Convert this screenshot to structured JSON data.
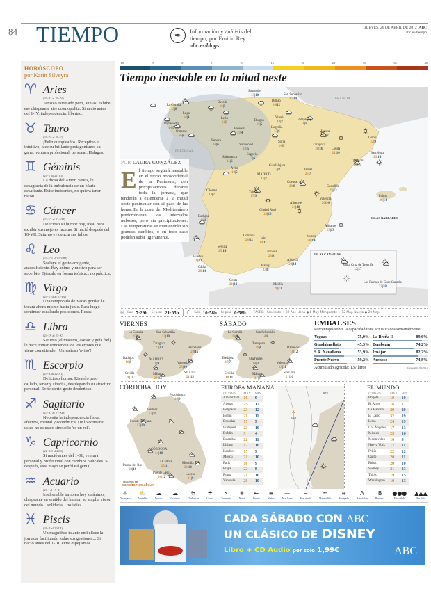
{
  "header": {
    "page_number": "84",
    "section": "TIEMPO",
    "blog_line1": "Información y análisis del",
    "blog_line2": "tiempo, por Emilio Rey",
    "blog_url": "abc.es/blogs",
    "date": "JUEVES, 26 DE ABRIL DE 2012",
    "brand": "ABC",
    "site": "abc.es/tiempo"
  },
  "horoscope": {
    "title": "HORÓSCOPO",
    "author": "por Karin Silveyra",
    "signs": [
      {
        "glyph": "♈",
        "name": "Aries",
        "dates": "(21-III al 20-IV)",
        "text": "Tenso o estresado pero, aun así exhibe ese chispeante aire cosmopolita. Si nació antes del 1-IV, independencia, libertad."
      },
      {
        "glyph": "♉",
        "name": "Tauro",
        "dates": "(21-IV al 20-V)",
        "text": "¡Feliz cumpleaños! Receptivo e intuitivo, luce su brillante protagonismo, su garra, ventura profesional, personal. Halagos."
      },
      {
        "glyph": "♊",
        "name": "Géminis",
        "dates": "(21-V al 21-VI)",
        "text": "La diosa del Amor, Venus, le desagravia de la turbulencia de un Marte desafiante. Evite incidentes, no quiera tener razón."
      },
      {
        "glyph": "♋",
        "name": "Cáncer",
        "dates": "(22-VI al 22-VII)",
        "text": "Delicioso su humor hoy, ideal para exhibir sus mejores facetas. Si nació después del 10-VII, Saturno evidencia sus fallos."
      },
      {
        "glyph": "♌",
        "name": "Leo",
        "dates": "(23-VII al 22-VIII)",
        "text": "Soslaye el gesto arrogante, autosuficiente. Hay ánimo y motivo para ser soberbio. Ejérzalo en forma teórica... no práctica."
      },
      {
        "glyph": "♍",
        "name": "Virgo",
        "dates": "(24-VIII al 23-IX)",
        "text": "Una temporada de 'vacas gordas' le tocará ahora mismo hasta junio. Para luego continuar escalando posiciones. Rosas."
      },
      {
        "glyph": "♎",
        "name": "Libra",
        "dates": "(24-IX al 23-X)",
        "text": "Saturno (el maestro, asesor y guía fiel) le hace 'tomar conciencia' de los errores que viene cometiendo. ¡Un valioso 'aviso'!"
      },
      {
        "glyph": "♏",
        "name": "Escorpio",
        "dates": "(24-X al 22-XI)",
        "text": "Delicioso humor. Risueño pero callado, tenaz y sibarita, desplegando su atractivo personal. Evite cierto gesto desdeñoso."
      },
      {
        "glyph": "♐",
        "name": "Sagitario",
        "dates": "(23-XI al 21-XII)",
        "text": "Necesita la independencia física, afectiva, mental y económica. De lo contrario... usted no es usted sino sólo 'es un rol'."
      },
      {
        "glyph": "♑",
        "name": "Capricornio",
        "dates": "(22-XII al 20-I)",
        "text": "Si nació antes del 1-01, ventura personal y profesional con cambios radicales. Si después, este mayo se perfilará genial."
      },
      {
        "glyph": "♒",
        "name": "Acuario",
        "dates": "(21-I al 19-II)",
        "text": "Irrefrenable también hoy su ánimo, chispeante su sentido del humor, su amplia visión del mundo... solidaria... holística."
      },
      {
        "glyph": "♓",
        "name": "Piscis",
        "dates": "(20-II al 20-III)",
        "text": "Un magnífico talante embellece la jornada, facilitando todas sus gestiones... Si nació antes del 1-III, evite espejismos."
      }
    ]
  },
  "scale": {
    "ticks": [
      "-10",
      "-5",
      "0",
      "5",
      "10",
      "15",
      "20",
      "25",
      "30",
      "35",
      "40"
    ],
    "colors": [
      "#1c4e6e",
      "#2a6a90",
      "#5b8db5",
      "#8fb3cf",
      "#c9dceb",
      "#f5d020",
      "#f2b61a",
      "#eb8f1e",
      "#c8521c",
      "#a5381a"
    ]
  },
  "main": {
    "headline": "Tiempo inestable en la mitad oeste",
    "byline_pre": "POR",
    "byline": "LAURA GONZÁLEZ",
    "dropcap": "E",
    "article": "l tiempo seguirá inestable en el tercio noroccidental de la Península, con precipitaciones durante toda la jornada, que tenderán a extenderse a la mitad oeste peninsular con el paso de las horas. En la costa del Mediterráneo predominarán los intervalos nubosos, pero sin precipitaciones. Las temperaturas se mantendrán sin grandes cambios, o en todo caso podrían subir ligeramente.",
    "labels": {
      "france": "FRANCIA",
      "portugal": "PORTUGAL",
      "baleares": "ISLAS BALEARES",
      "canarias": "ISLAS CANARIAS"
    },
    "cities": [
      {
        "name": "Santander",
        "max": "13",
        "min": "10"
      },
      {
        "name": "San Sebastián",
        "max": "15",
        "min": "10"
      },
      {
        "name": "Oviedo",
        "max": "10",
        "min": "5"
      },
      {
        "name": "La Coruña",
        "max": "15",
        "min": "8"
      },
      {
        "name": "Bilbao",
        "max": "14",
        "min": "12"
      },
      {
        "name": "Lugo",
        "max": "10",
        "min": "4"
      },
      {
        "name": "León",
        "max": "11",
        "min": "3"
      },
      {
        "name": "Vitoria",
        "max": "13",
        "min": "7"
      },
      {
        "name": "Pamplona",
        "max": "16",
        "min": "8"
      },
      {
        "name": "Pontevedra",
        "max": "14",
        "min": "7"
      },
      {
        "name": "Ourense",
        "max": "16",
        "min": "4"
      },
      {
        "name": "Burgos",
        "max": "10",
        "min": "5"
      },
      {
        "name": "Logroño",
        "max": "13",
        "min": "6"
      },
      {
        "name": "Palencia",
        "max": "10",
        "min": "4"
      },
      {
        "name": "Zamora",
        "max": "14",
        "min": "6"
      },
      {
        "name": "Valladolid",
        "max": "13",
        "min": "5"
      },
      {
        "name": "Soria",
        "max": "14",
        "min": "5"
      },
      {
        "name": "Huesca",
        "max": "22",
        "min": "12"
      },
      {
        "name": "Zaragoza",
        "max": "20",
        "min": "10"
      },
      {
        "name": "Lleida",
        "max": "21",
        "min": "10"
      },
      {
        "name": "Girona",
        "max": "22",
        "min": "9"
      },
      {
        "name": "Barcelona",
        "max": "23",
        "min": "14"
      },
      {
        "name": "Tarragona",
        "max": "20",
        "min": "13"
      },
      {
        "name": "Salamanca",
        "max": "11",
        "min": "6"
      },
      {
        "name": "Segovia",
        "max": "13",
        "min": "6"
      },
      {
        "name": "Guadalajara",
        "max": "13",
        "min": "8"
      },
      {
        "name": "Ávila",
        "max": "10",
        "min": "5"
      },
      {
        "name": "Teruel",
        "max": "25",
        "min": "7"
      },
      {
        "name": "MADRID",
        "max": "15",
        "min": "7"
      },
      {
        "name": "Cuenca",
        "max": "20",
        "min": "8"
      },
      {
        "name": "Castellón",
        "max": "25",
        "min": "13"
      },
      {
        "name": "Valencia",
        "max": "26",
        "min": "14"
      },
      {
        "name": "Palma",
        "max": "20",
        "min": "14"
      },
      {
        "name": "Cáceres",
        "max": "13",
        "min": "7"
      },
      {
        "name": "Toledo",
        "max": "17",
        "min": "9"
      },
      {
        "name": "Albacete",
        "max": "24",
        "min": "10"
      },
      {
        "name": "Badajoz",
        "max": "16",
        "min": "8"
      },
      {
        "name": "Ciudad Real",
        "max": "20",
        "min": "10"
      },
      {
        "name": "Alicante",
        "max": "23",
        "min": "13"
      },
      {
        "name": "Murcia",
        "max": "20",
        "min": "14"
      },
      {
        "name": "Córdoba",
        "max": "24",
        "min": "12"
      },
      {
        "name": "Jaén",
        "max": "20",
        "min": "11"
      },
      {
        "name": "Sevilla",
        "max": "25",
        "min": "14"
      },
      {
        "name": "Granada",
        "max": "23",
        "min": "8"
      },
      {
        "name": "Almería",
        "max": "20",
        "min": "14"
      },
      {
        "name": "Huelva",
        "max": "18",
        "min": "12"
      },
      {
        "name": "Cádiz",
        "max": "20",
        "min": "14"
      },
      {
        "name": "Málaga",
        "max": "23",
        "min": "8"
      },
      {
        "name": "Ceuta",
        "max": "21",
        "min": "14"
      },
      {
        "name": "Melilla",
        "max": "20",
        "min": "13"
      },
      {
        "name": "Santa Cruz de Tenerife",
        "max": "22",
        "min": "17"
      },
      {
        "name": "Las Palmas de Gran Canaria",
        "max": "22",
        "min": "18"
      }
    ]
  },
  "sun": {
    "sun_rise_label": "Sale",
    "sun_rise": "7:29h.",
    "sun_set_label": "Se pone",
    "sun_set": "21:05h.",
    "moon_rise_label": "Sale",
    "moon_rise": "10:58h.",
    "moon_set_label": "Se pone",
    "moon_set": "0:58h.",
    "phases_label": "FASES:",
    "phases": "Creciente ☽ 29 Abr.  Llena ● 6 May.   Menguante ☾ 12 May.  Nueva ● 20 May."
  },
  "viernes": {
    "title": "VIERNES",
    "cities": [
      {
        "name": "La Coruña",
        "max": "15",
        "min": "8"
      },
      {
        "name": "San Sebastián",
        "max": "13",
        "min": "10"
      },
      {
        "name": "Zaragoza",
        "max": "23",
        "min": "13"
      },
      {
        "name": "Barcelona",
        "max": "20",
        "min": "15"
      },
      {
        "name": "Badajoz",
        "max": "16",
        "min": "9"
      },
      {
        "name": "MADRID",
        "max": "18",
        "min": "9"
      },
      {
        "name": "Valencia",
        "max": "23",
        "min": "14"
      },
      {
        "name": "Sevilla",
        "max": "20",
        "min": "11"
      },
      {
        "name": "Málaga",
        "max": "23",
        "min": "13"
      },
      {
        "name": "Sta Cruz",
        "max": "21",
        "min": "15"
      }
    ]
  },
  "sabado": {
    "title": "SÁBADO",
    "cities": [
      {
        "name": "La Coruña",
        "max": "14",
        "min": "8"
      },
      {
        "name": "San Sebastián",
        "max": "14",
        "min": "8"
      },
      {
        "name": "Zaragoza",
        "max": "18",
        "min": "8"
      },
      {
        "name": "Barcelona",
        "max": "18",
        "min": "12"
      },
      {
        "name": "Badajoz",
        "max": "17",
        "min": "7"
      },
      {
        "name": "MADRID",
        "max": "14",
        "min": "3"
      },
      {
        "name": "Valencia",
        "max": "23",
        "min": "11"
      },
      {
        "name": "Sevilla",
        "max": "18",
        "min": "11"
      },
      {
        "name": "Málaga",
        "max": "21",
        "min": "8"
      },
      {
        "name": "Sta Cruz",
        "max": "21",
        "min": "16"
      }
    ]
  },
  "embalses": {
    "title": "EMBALSES",
    "subtitle": "Porcentajes sobre la capacidad total actualizados semanalmente",
    "items": [
      {
        "name": "Yeguas",
        "pct": "75,9%",
        "value": 75.9
      },
      {
        "name": "La Breña II",
        "pct": "89,6%",
        "value": 89.6
      },
      {
        "name": "Guadalmellato",
        "pct": "45,5%",
        "value": 45.5
      },
      {
        "name": "Bembézar",
        "pct": "74,2%",
        "value": 74.2
      },
      {
        "name": "S.R. Navallana",
        "pct": "53,9%",
        "value": 53.9
      },
      {
        "name": "Iznájar",
        "pct": "82,2%",
        "value": 82.2
      },
      {
        "name": "Puente Nuevo",
        "pct": "59,2%",
        "value": 59.2
      },
      {
        "name": "Arenoso",
        "pct": "74,8%",
        "value": 74.8
      }
    ],
    "acumulado": "Acumulado agrícola: 137 litros",
    "since": "Desde el 01/09/2011"
  },
  "cordoba": {
    "title": "CÓRDOBA HOY",
    "visit": "Visítenos en",
    "url": "canalmeteo.abc.es",
    "cities": [
      {
        "name": "Pozoblanco",
        "max": "14",
        "min": "9"
      },
      {
        "name": "Bélmez",
        "max": "17",
        "min": "10"
      },
      {
        "name": "Fuente Obejuna",
        "max": "17",
        "min": "10"
      },
      {
        "name": "CÓRDOBA",
        "max": "24",
        "min": "10"
      },
      {
        "name": "La Carlota",
        "max": "25",
        "min": "11"
      },
      {
        "name": "Palma del Río",
        "max": "24",
        "min": "11"
      },
      {
        "name": "Puente Genil",
        "max": "24",
        "min": "12"
      },
      {
        "name": "Montilla",
        "max": "20",
        "min": "10"
      },
      {
        "name": "Lucena",
        "max": "21",
        "min": "9"
      }
    ]
  },
  "europa": {
    "title": "EUROPA MAÑANA",
    "headers": [
      "CIUDAD",
      "MAX",
      "MIN"
    ],
    "pressure": [
      "A",
      "1028",
      "974"
    ],
    "rows": [
      [
        "Amsterdam",
        "16",
        "9"
      ],
      [
        "Atenas",
        "25",
        "12"
      ],
      [
        "Belgrado",
        "23",
        "12"
      ],
      [
        "Berlín",
        "21",
        "11"
      ],
      [
        "Bruselas",
        "15",
        "9"
      ],
      [
        "Budapest",
        "23",
        "10"
      ],
      [
        "Dublín",
        "9",
        "4"
      ],
      [
        "Estambul",
        "22",
        "11"
      ],
      [
        "Lisboa",
        "17",
        "10"
      ],
      [
        "Londres",
        "15",
        "9"
      ],
      [
        "Moscú",
        "21",
        "10"
      ],
      [
        "París",
        "16",
        "9"
      ],
      [
        "Praga",
        "22",
        "8"
      ],
      [
        "Roma",
        "21",
        "10"
      ],
      [
        "Varsovia",
        "20",
        "10"
      ]
    ]
  },
  "mundo": {
    "title": "EL MUNDO",
    "headers": [
      "CIUDAD",
      "MAX",
      "MIN"
    ],
    "rows": [
      [
        "Bogotá",
        "19",
        "10"
      ],
      [
        "B. Aires",
        "16",
        "7"
      ],
      [
        "La Habana",
        "29",
        "20"
      ],
      [
        "El Cairo",
        "32",
        "19"
      ],
      [
        "Lima",
        "24",
        "19"
      ],
      [
        "Los Ángeles",
        "17",
        "13"
      ],
      [
        "México",
        "23",
        "16"
      ],
      [
        "Montevideo",
        "16",
        "9"
      ],
      [
        "Nueva York",
        "12",
        "11"
      ],
      [
        "Pekín",
        "22",
        "12"
      ],
      [
        "Quito",
        "20",
        "11"
      ],
      [
        "Rabat",
        "20",
        "10"
      ],
      [
        "Sydney",
        "21",
        "13"
      ],
      [
        "Tokyo",
        "19",
        "15"
      ],
      [
        "Washington",
        "19",
        "13"
      ]
    ]
  },
  "legend": [
    {
      "icon": "☼",
      "label": "Despejado"
    },
    {
      "icon": "⛅",
      "label": "Variable"
    },
    {
      "icon": "☁",
      "label": "Nuboso"
    },
    {
      "icon": "☁",
      "label": "Cubierto"
    },
    {
      "icon": "⛈",
      "label": "Chubascos"
    },
    {
      "icon": "☂",
      "label": "Lluvia"
    },
    {
      "icon": "⚡",
      "label": "Tormenta"
    },
    {
      "icon": "❄",
      "label": "Nieve"
    },
    {
      "icon": "←",
      "label": "Viento"
    },
    {
      "icon": "≡",
      "label": "Niebla"
    },
    {
      "icon": "—",
      "label": "Mar llana"
    },
    {
      "icon": "∼",
      "label": "Mar rizada"
    },
    {
      "icon": "≈",
      "label": "Marejadilla"
    },
    {
      "icon": "≋",
      "label": "Marejada"
    },
    {
      "icon": "A",
      "label": "Anticiclón"
    },
    {
      "icon": "B",
      "label": "Borrasca"
    },
    {
      "icon": "●●●",
      "label": "Fte. cálido"
    },
    {
      "icon": "▲▲▲",
      "label": "Fte. frío"
    }
  ],
  "ad": {
    "line1a": "CADA SÁBADO CON",
    "line1b": "ABC",
    "line2a": "UN CLÁSICO DE",
    "line2b": "DISNEY",
    "line3a": "Libro + CD Audio",
    "line3b": "por solo",
    "price": "1,99€",
    "logo": "ABC"
  }
}
